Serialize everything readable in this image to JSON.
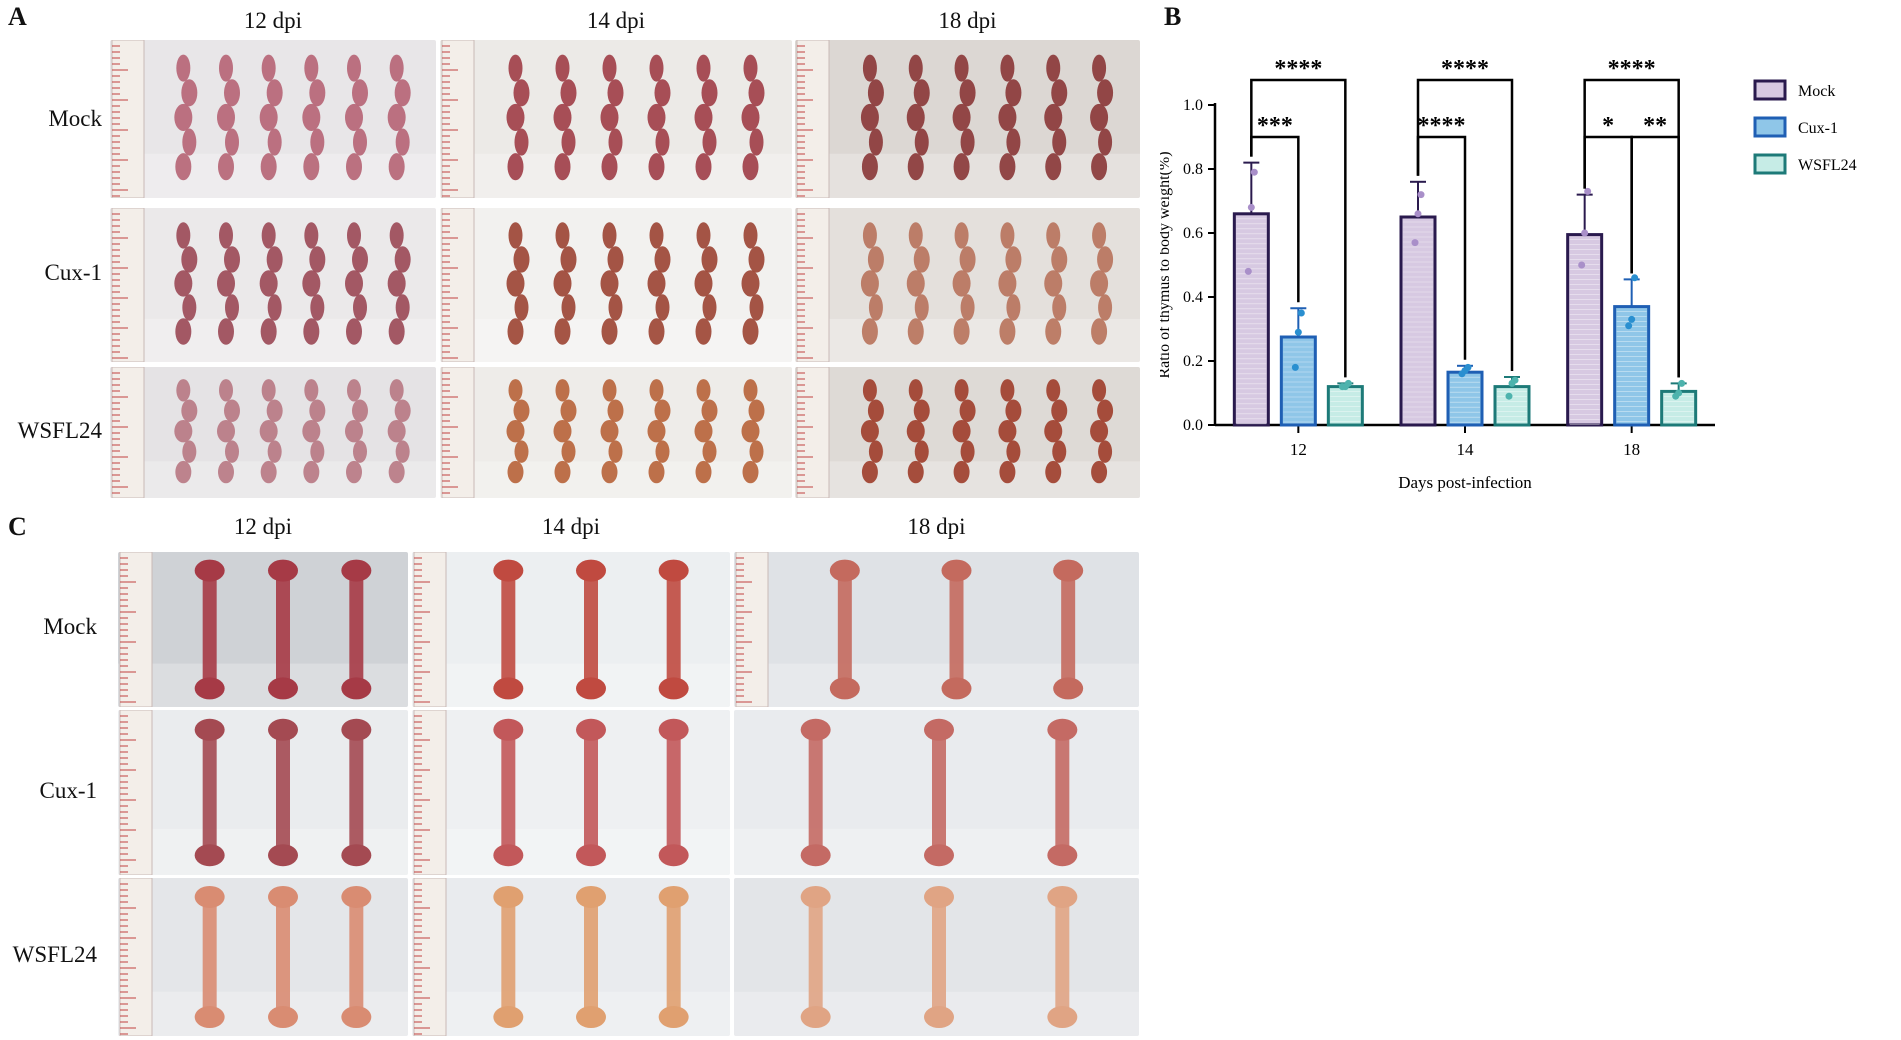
{
  "panel_a": {
    "letter": "A",
    "columns": [
      "12 dpi",
      "14 dpi",
      "18 dpi"
    ],
    "rows": [
      "Mock",
      "Cux-1",
      "WSFL24"
    ]
  },
  "panel_c": {
    "letter": "C",
    "columns": [
      "12 dpi",
      "14 dpi",
      "18 dpi"
    ],
    "rows": [
      "Mock",
      "Cux-1",
      "WSFL24"
    ]
  },
  "panel_b": {
    "letter": "B"
  },
  "chart_data": {
    "type": "bar",
    "xlabel": "Days post-infection",
    "ylabel": "Ratio of thymus to body weight(%)",
    "categories": [
      "12",
      "14",
      "18"
    ],
    "ylim": [
      0,
      1.0
    ],
    "yticks": [
      "0.0",
      "0.2",
      "0.4",
      "0.6",
      "0.8",
      "1.0"
    ],
    "legend_position": "right",
    "series": [
      {
        "name": "Mock",
        "values": [
          0.66,
          0.65,
          0.595
        ],
        "errors": [
          0.16,
          0.11,
          0.125
        ],
        "points": [
          [
            0.48,
            0.68,
            0.79
          ],
          [
            0.57,
            0.66,
            0.72
          ],
          [
            0.5,
            0.6,
            0.73
          ]
        ],
        "fill": "#d7c9e2",
        "stroke": "#2a1a4e",
        "dot": "#a98fc9"
      },
      {
        "name": "Cux-1",
        "values": [
          0.275,
          0.165,
          0.37
        ],
        "errors": [
          0.09,
          0.02,
          0.085
        ],
        "points": [
          [
            0.18,
            0.29,
            0.35
          ],
          [
            0.16,
            0.17,
            0.18
          ],
          [
            0.31,
            0.33,
            0.46
          ]
        ],
        "fill": "#8fc6e8",
        "stroke": "#1f5fb4",
        "dot": "#2a8fd0"
      },
      {
        "name": "WSFL24",
        "values": [
          0.12,
          0.12,
          0.105
        ],
        "errors": [
          0.01,
          0.03,
          0.025
        ],
        "points": [
          [
            0.12,
            0.12,
            0.13
          ],
          [
            0.09,
            0.13,
            0.14
          ],
          [
            0.09,
            0.1,
            0.13
          ]
        ],
        "fill": "#c6ece6",
        "stroke": "#1d7a78",
        "dot": "#4db3ad"
      }
    ],
    "significance": [
      {
        "category": "12",
        "from": "Mock",
        "to": "WSFL24",
        "label": "****"
      },
      {
        "category": "12",
        "from": "Mock",
        "to": "Cux-1",
        "label": "***"
      },
      {
        "category": "14",
        "from": "Mock",
        "to": "WSFL24",
        "label": "****"
      },
      {
        "category": "14",
        "from": "Mock",
        "to": "Cux-1",
        "label": "****"
      },
      {
        "category": "18",
        "from": "Mock",
        "to": "WSFL24",
        "label": "****"
      },
      {
        "category": "18",
        "from": "Mock",
        "to": "Cux-1",
        "label": "*"
      },
      {
        "category": "18",
        "from": "Cux-1",
        "to": "WSFL24",
        "label": "**"
      }
    ]
  }
}
